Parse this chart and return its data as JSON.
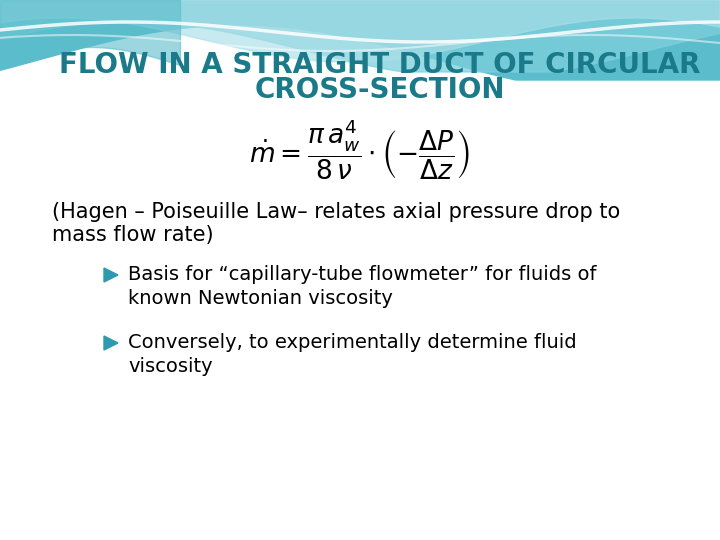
{
  "title_line1": "FLOW IN A STRAIGHT DUCT OF CIRCULAR",
  "title_line2": "CROSS-SECTION",
  "title_color": "#1A7A8A",
  "title_fontsize": 20,
  "formula_latex": "$\\dot{m} = \\dfrac{\\pi\\, a_w^4}{8\\, \\nu} \\cdot \\left(-\\dfrac{\\Delta P}{\\Delta z}\\right)$",
  "formula_fontsize": 19,
  "body_line1": "(Hagen – Poiseuille Law– relates axial pressure drop to",
  "body_line2": "mass flow rate)",
  "body_fontsize": 15,
  "bullet1_line1": "Basis for “capillary-tube flowmeter” for fluids of",
  "bullet1_line2": "known Newtonian viscosity",
  "bullet2_line1": "Conversely, to experimentally determine fluid",
  "bullet2_line2": "viscosity",
  "bullet_fontsize": 14,
  "bullet_color": "#2E9AAF",
  "bg_color": "#FFFFFF"
}
